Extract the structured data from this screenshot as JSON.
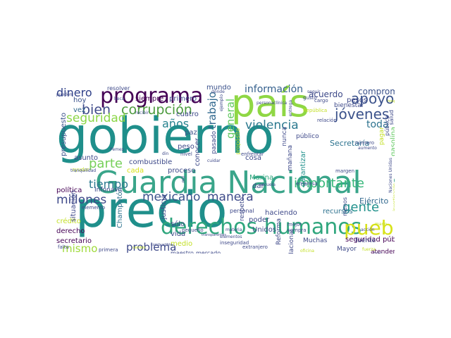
{
  "wordcloud": {
    "words": [
      {
        "text": "gobierno",
        "color": "#1f8f8b"
      },
      {
        "text": "precio",
        "color": "#1f8f8b"
      },
      {
        "text": "país",
        "color": "#8fd744"
      },
      {
        "text": "Guardia Nacional",
        "color": "#3aa58a"
      },
      {
        "text": "derechos humanos",
        "color": "#2fa67d"
      },
      {
        "text": "programa",
        "color": "#440154"
      },
      {
        "text": "pueblo",
        "color": "#d8e219"
      },
      {
        "text": "corrupción",
        "color": "#4c9a3d"
      },
      {
        "text": "bien",
        "color": "#3e4a89"
      },
      {
        "text": "seguridad",
        "color": "#8bd646"
      },
      {
        "text": "dinero",
        "color": "#2e3f88"
      },
      {
        "text": "apoyo",
        "color": "#3b528b"
      },
      {
        "text": "jóvenes",
        "color": "#3b528b"
      },
      {
        "text": "información",
        "color": "#35608d"
      },
      {
        "text": "años",
        "color": "#26828e"
      },
      {
        "text": "general",
        "color": "#63c962"
      },
      {
        "text": "trabajo",
        "color": "#31688e"
      },
      {
        "text": "violencia",
        "color": "#2a788e"
      },
      {
        "text": "toda",
        "color": "#2c728e"
      },
      {
        "text": "parte",
        "color": "#76d05a"
      },
      {
        "text": "tiempo",
        "color": "#2a788e"
      },
      {
        "text": "millones",
        "color": "#3e4989"
      },
      {
        "text": "mexicano",
        "color": "#3b528b"
      },
      {
        "text": "manera",
        "color": "#3e4a89"
      },
      {
        "text": "importante",
        "color": "#35b779"
      },
      {
        "text": "gente",
        "color": "#21918c"
      },
      {
        "text": "mismo",
        "color": "#9fda3a"
      },
      {
        "text": "problema",
        "color": "#3e4989"
      },
      {
        "text": "acuerdo",
        "color": "#3e4a89"
      },
      {
        "text": "compromiso",
        "color": "#3b528b"
      },
      {
        "text": "Secretaría",
        "color": "#2c728e"
      },
      {
        "text": "presupuesto",
        "color": "#3b528b"
      },
      {
        "text": "combustible",
        "color": "#3e4a89"
      },
      {
        "text": "Campeche",
        "color": "#3aa58a"
      },
      {
        "text": "Ejército",
        "color": "#31688e"
      },
      {
        "text": "seguridad pública",
        "color": "#440154"
      },
      {
        "text": "gasolina",
        "color": "#63c962"
      },
      {
        "text": "mundo",
        "color": "#3b528b"
      },
      {
        "text": "primero",
        "color": "#3e4989"
      },
      {
        "text": "siempre",
        "color": "#440154"
      },
      {
        "text": "hoy",
        "color": "#3b528b"
      },
      {
        "text": "vez",
        "color": "#31688e"
      },
      {
        "text": "asunto",
        "color": "#3e4989"
      },
      {
        "text": "cuatro",
        "color": "#3e4989"
      },
      {
        "text": "paz",
        "color": "#3b528b"
      },
      {
        "text": "peso",
        "color": "#3e4989"
      },
      {
        "text": "cada",
        "color": "#d8e219"
      },
      {
        "text": "proceso",
        "color": "#3e4989"
      },
      {
        "text": "política",
        "color": "#440154"
      },
      {
        "text": "Marina",
        "color": "#2fa67d"
      },
      {
        "text": "dar",
        "color": "#3e4989"
      },
      {
        "text": "haciendo",
        "color": "#3e4989"
      },
      {
        "text": "recursos",
        "color": "#2c728e"
      },
      {
        "text": "crédito",
        "color": "#c2df23"
      },
      {
        "text": "derecho",
        "color": "#440154"
      },
      {
        "text": "secretario",
        "color": "#440154"
      },
      {
        "text": "sólo",
        "color": "#3e4989"
      },
      {
        "text": "vida",
        "color": "#3e4989"
      },
      {
        "text": "medio",
        "color": "#c2df23"
      },
      {
        "text": "maestro",
        "color": "#3e4989"
      },
      {
        "text": "mercado",
        "color": "#3e4989"
      },
      {
        "text": "poder",
        "color": "#3e4989"
      },
      {
        "text": "Unidos",
        "color": "#3e4989"
      },
      {
        "text": "Nacional",
        "color": "#3e4989"
      },
      {
        "text": "Reforma",
        "color": "#3e4989"
      },
      {
        "text": "Muchas",
        "color": "#3e4989"
      },
      {
        "text": "Mayor",
        "color": "#3e4989"
      },
      {
        "text": "fuente",
        "color": "#3e4989"
      },
      {
        "text": "atender",
        "color": "#440154"
      },
      {
        "text": "pesos",
        "color": "#3e4989"
      },
      {
        "text": "bienestar",
        "color": "#3e4989"
      },
      {
        "text": "salud",
        "color": "#3e4989"
      },
      {
        "text": "pública",
        "color": "#3e4989"
      },
      {
        "text": "pagar",
        "color": "#c2df23"
      },
      {
        "text": "conocer",
        "color": "#3e4989"
      },
      {
        "text": "pasado",
        "color": "#3e4989"
      },
      {
        "text": "cosa",
        "color": "#3e4989"
      },
      {
        "text": "propósito",
        "color": "#c2df23"
      },
      {
        "text": "nunca",
        "color": "#3e4989"
      },
      {
        "text": "público",
        "color": "#3e4989"
      },
      {
        "text": "mañana",
        "color": "#3e4989"
      },
      {
        "text": "garantizar",
        "color": "#21918c"
      },
      {
        "text": "menos",
        "color": "#3e4989"
      },
      {
        "text": "justicia",
        "color": "#3e4989"
      },
      {
        "text": "respeto",
        "color": "#3e4989"
      },
      {
        "text": "Champotón",
        "color": "#2c728e"
      },
      {
        "text": "Infonavit",
        "color": "#3e4989"
      },
      {
        "text": "situación",
        "color": "#3e4989"
      },
      {
        "text": "resolver",
        "color": "#3e4989"
      },
      {
        "text": "beca",
        "color": "#3e4989"
      },
      {
        "text": "gusto",
        "color": "#3e4989"
      },
      {
        "text": "cargo",
        "color": "#3e4989"
      },
      {
        "text": "República",
        "color": "#c2df23"
      },
      {
        "text": "relación",
        "color": "#3e4989"
      },
      {
        "text": "número",
        "color": "#3e4989"
      },
      {
        "text": "aumento",
        "color": "#3e4989"
      },
      {
        "text": "empresa",
        "color": "#3e4989"
      },
      {
        "text": "margen",
        "color": "#3e4989"
      },
      {
        "text": "personal",
        "color": "#3e4989"
      },
      {
        "text": "elemento",
        "color": "#3e4989"
      },
      {
        "text": "falta",
        "color": "#3e4989"
      },
      {
        "text": "primera",
        "color": "#3e4989"
      },
      {
        "text": "meses",
        "color": "#3e4989"
      },
      {
        "text": "pequeño",
        "color": "#3e4989"
      },
      {
        "text": "inseguridad",
        "color": "#3e4989"
      },
      {
        "text": "extranjero",
        "color": "#3e4989"
      },
      {
        "text": "mejor",
        "color": "#3e4989"
      },
      {
        "text": "compra",
        "color": "#3e4989"
      },
      {
        "text": "Pemex",
        "color": "#3e4989"
      },
      {
        "text": "ayudar",
        "color": "#c2df23"
      },
      {
        "text": "cuidar",
        "color": "#3e4989"
      },
      {
        "text": "enfrentar",
        "color": "#3e4989"
      },
      {
        "text": "nivel",
        "color": "#3e4989"
      },
      {
        "text": "pueden",
        "color": "#3e4989"
      },
      {
        "text": "mano",
        "color": "#c2df23"
      },
      {
        "text": "seis",
        "color": "#3e4989"
      },
      {
        "text": "fuerza",
        "color": "#c2df23"
      },
      {
        "text": "materia",
        "color": "#3e4989"
      },
      {
        "text": "oficina",
        "color": "#c2df23"
      },
      {
        "text": "seguir",
        "color": "#3e4989"
      },
      {
        "text": "Naciones Unidas",
        "color": "#3e4989"
      },
      {
        "text": "investigación",
        "color": "#c2df23"
      },
      {
        "text": "elementos",
        "color": "#3e4989"
      },
      {
        "text": "dónde",
        "color": "#3e4989"
      },
      {
        "text": "ejemplo",
        "color": "#3e4989"
      },
      {
        "text": "persona",
        "color": "#3e4989"
      },
      {
        "text": "clínica",
        "color": "#3e4989"
      },
      {
        "text": "recibir",
        "color": "#3e4989"
      },
      {
        "text": "acción",
        "color": "#3e4989"
      },
      {
        "text": "mil",
        "color": "#3e4989"
      },
      {
        "text": "din",
        "color": "#3e4989"
      },
      {
        "text": "entrega",
        "color": "#3e4989"
      },
      {
        "text": "combustible",
        "color": "#3e4989"
      },
      {
        "text": "cambio",
        "color": "#c2df23"
      },
      {
        "text": "tranquilidad",
        "color": "#3e4989"
      },
      {
        "text": "hospital",
        "color": "#c2df23"
      },
      {
        "text": "transparentes",
        "color": "#3e4989"
      },
      {
        "text": "escuela",
        "color": "#3e4989"
      }
    ]
  }
}
